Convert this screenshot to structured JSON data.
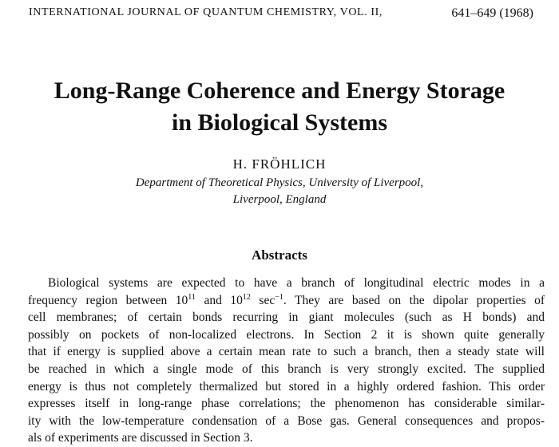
{
  "header": {
    "journal": "INTERNATIONAL JOURNAL OF QUANTUM CHEMISTRY, VOL. II,",
    "pages": "641–649 (1968)"
  },
  "title": [
    "Long-Range Coherence and Energy Storage",
    "in Biological Systems"
  ],
  "author": "H. FRÖHLICH",
  "affiliation": [
    "Department of Theoretical Physics, University of Liverpool,",
    "Liverpool, England"
  ],
  "abstract": {
    "heading": "Abstracts",
    "lines": [
      "Biological systems are expected to have a branch of longitudinal electric modes in a",
      [
        "frequency region between 10",
        "11",
        " and 10",
        "12",
        " sec",
        "−1",
        ". They are based on the dipolar properties of"
      ],
      "cell membranes; of certain bonds recurring in giant molecules (such as H bonds) and",
      "possibly on pockets of non-localized electrons. In Section 2 it is shown quite generally",
      "that if energy is supplied above a certain mean rate to such a branch, then a steady state will",
      "be reached in which a single mode of this branch is very strongly excited. The supplied",
      "energy is thus not completely thermalized but stored in a highly ordered fashion. This order",
      "expresses itself in long-range phase correlations; the phenomenon has considerable similar-",
      "ity with the low-temperature condensation of a Bose gas. General consequences and propos-",
      "als of experiments are discussed in Section 3."
    ]
  }
}
